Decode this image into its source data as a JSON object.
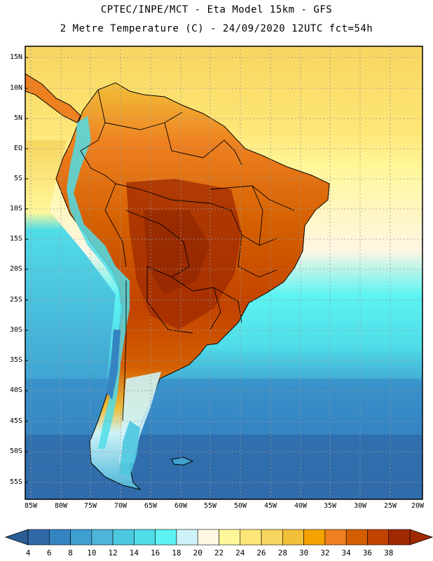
{
  "header": {
    "line1": "CPTEC/INPE/MCT -  Eta Model 15km - GFS",
    "line2": "2 Metre Temperature (C) - 24/09/2020 12UTC fct=54h"
  },
  "map": {
    "lat_labels": [
      "15N",
      "10N",
      "5N",
      "EQ",
      "5S",
      "10S",
      "15S",
      "20S",
      "25S",
      "30S",
      "35S",
      "40S",
      "45S",
      "50S",
      "55S"
    ],
    "lon_labels": [
      "85W",
      "80W",
      "75W",
      "70W",
      "65W",
      "60W",
      "55W",
      "50W",
      "45W",
      "40W",
      "35W",
      "30W",
      "25W",
      "20W"
    ],
    "lon_range": [
      -85,
      -20
    ],
    "lat_range": [
      -57,
      16
    ],
    "variable": "2 Metre Temperature (C)"
  },
  "colorbar": {
    "labels": [
      "4",
      "6",
      "8",
      "10",
      "12",
      "14",
      "16",
      "18",
      "20",
      "22",
      "24",
      "26",
      "28",
      "30",
      "32",
      "34",
      "36",
      "38"
    ],
    "colors": [
      "#2f69a8",
      "#3584c2",
      "#3e9fd0",
      "#4cb5d8",
      "#4cc8e0",
      "#50dde8",
      "#5cf3f2",
      "#cdf3f8",
      "#fff6e4",
      "#fff79a",
      "#fee778",
      "#f8d560",
      "#f2bf3a",
      "#f5a300",
      "#ee8020",
      "#d45f00",
      "#c24300",
      "#9f2900"
    ],
    "under_color": "#2a5c96",
    "over_color": "#9f2900"
  }
}
